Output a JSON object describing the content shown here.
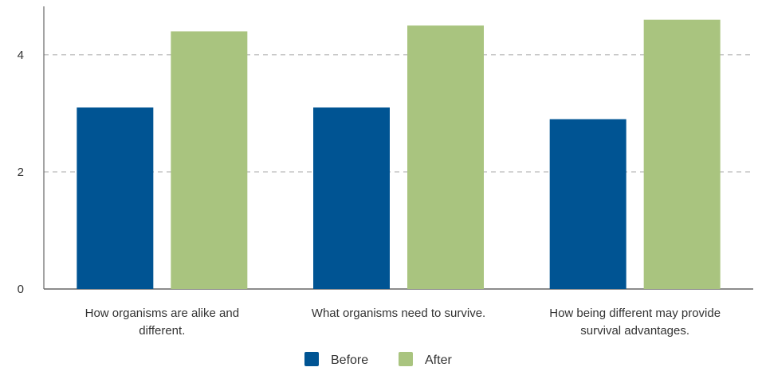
{
  "chart_data": {
    "type": "bar",
    "categories": [
      [
        "How organisms are alike and",
        "different."
      ],
      [
        "What organisms need to survive."
      ],
      [
        "How being different may provide",
        "survival advantages."
      ]
    ],
    "series": [
      {
        "name": "Before",
        "values": [
          3.1,
          3.1,
          2.9
        ]
      },
      {
        "name": "After",
        "values": [
          4.4,
          4.5,
          4.6
        ]
      }
    ],
    "y_ticks": [
      "0",
      "2",
      "4"
    ],
    "ylim": [
      0,
      4.8
    ],
    "grid": true,
    "legend": "bottom",
    "colors": {
      "Before": "#005493",
      "After": "#a9c47f",
      "grid": "#b3b3b3",
      "axis": "#666666"
    }
  }
}
